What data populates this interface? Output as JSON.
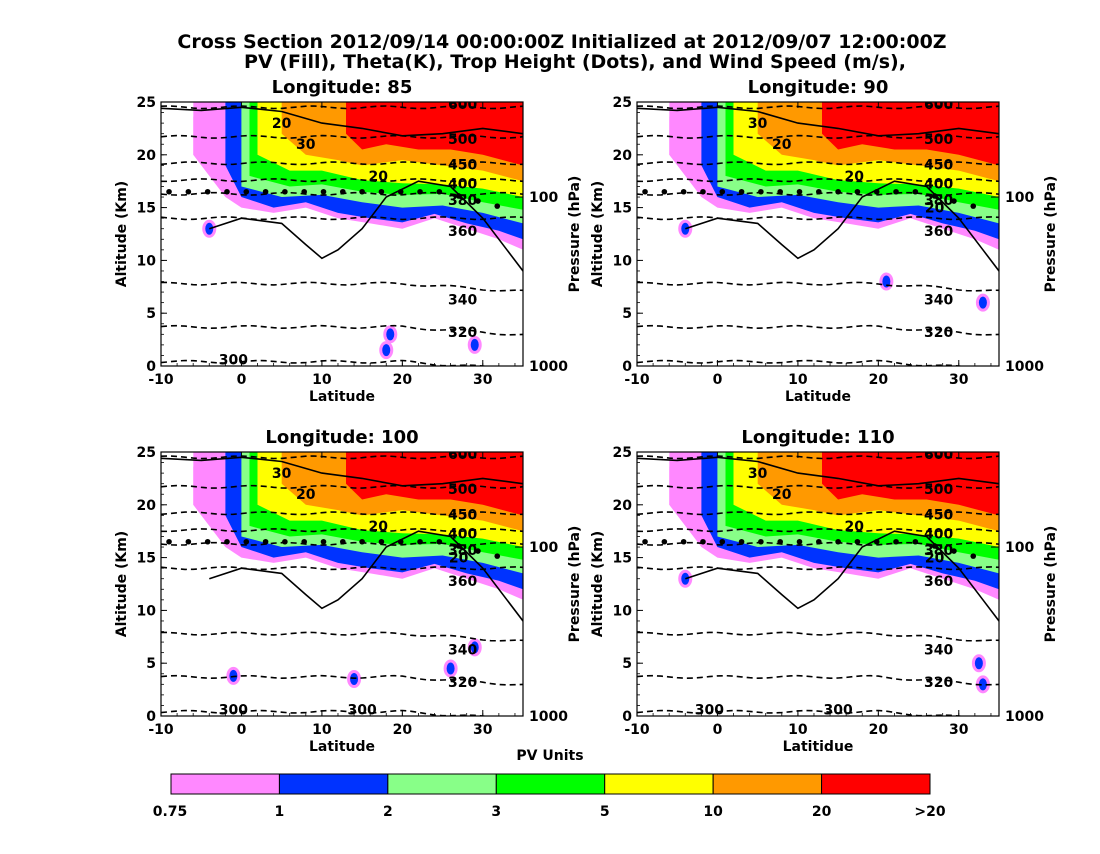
{
  "title_line1": "Cross Section 2012/09/14 00:00:00Z Initialized at 2012/09/07 12:00:00Z",
  "title_line2": "PV (Fill), Theta(K), Trop Height (Dots), and Wind Speed (m/s),",
  "colorbar": {
    "title": "PV Units",
    "colors": [
      "#ff88ff",
      "#0033ff",
      "#88ff88",
      "#00ff00",
      "#ffff00",
      "#ff9900",
      "#ff0000"
    ],
    "labels": [
      "0.75",
      "1",
      "2",
      "3",
      "5",
      "10",
      "20",
      ">20"
    ]
  },
  "chart_data": [
    {
      "type": "contour",
      "title": "Longitude:  85",
      "xlabel": "Latitude",
      "ylabel": "Altitude (Km)",
      "ylabel_right": "Pressure (hPa)",
      "xlim": [
        -10,
        35
      ],
      "ylim": [
        0,
        25
      ],
      "x_ticks": [
        "-10",
        "0",
        "10",
        "20",
        "30"
      ],
      "y_ticks": [
        "0",
        "5",
        "10",
        "15",
        "20",
        "25"
      ],
      "pressure_ticks": [
        "1000",
        "100"
      ],
      "theta_labels": [
        "300",
        "320",
        "340",
        "360",
        "380",
        "400",
        "450",
        "500",
        "600"
      ],
      "wind_labels": [
        "20",
        "30",
        "20"
      ],
      "pv_bands": [
        {
          "x": [
            -10,
            35
          ],
          "y": [
            23,
            25
          ],
          "level": 0.75
        },
        {
          "x": [
            15,
            35
          ],
          "y": [
            18,
            25
          ],
          "level": 20
        },
        {
          "x": [
            0,
            35
          ],
          "y": [
            16,
            18
          ],
          "level": 5
        }
      ],
      "trop_height_km": 16.5
    },
    {
      "type": "contour",
      "title": "Longitude:  90",
      "xlabel": "Latitude",
      "ylabel": "Altitude (Km)",
      "ylabel_right": "Pressure (hPa)",
      "xlim": [
        -10,
        35
      ],
      "ylim": [
        0,
        25
      ],
      "x_ticks": [
        "-10",
        "0",
        "10",
        "20",
        "30"
      ],
      "y_ticks": [
        "0",
        "5",
        "10",
        "15",
        "20",
        "25"
      ],
      "pressure_ticks": [
        "1000",
        "100"
      ],
      "theta_labels": [
        "320",
        "340",
        "360",
        "380",
        "400",
        "450",
        "500",
        "600"
      ],
      "wind_labels": [
        "30",
        "20",
        "20",
        "20"
      ],
      "trop_height_km": 16.5
    },
    {
      "type": "contour",
      "title": "Longitude:  100",
      "xlabel": "Latitude",
      "ylabel": "Altitude (Km)",
      "ylabel_right": "Pressure (hPa)",
      "xlim": [
        -10,
        35
      ],
      "ylim": [
        0,
        25
      ],
      "x_ticks": [
        "-10",
        "0",
        "10",
        "20",
        "30"
      ],
      "y_ticks": [
        "0",
        "5",
        "10",
        "15",
        "20",
        "25"
      ],
      "pressure_ticks": [
        "1000",
        "100"
      ],
      "theta_labels": [
        "300",
        "300",
        "320",
        "340",
        "360",
        "380",
        "400",
        "450",
        "500",
        "600"
      ],
      "wind_labels": [
        "30",
        "20",
        "20",
        "20"
      ],
      "trop_height_km": 16.5
    },
    {
      "type": "contour",
      "title": "Longitude:  110",
      "xlabel": "Latitidue",
      "ylabel": "Altitude (Km)",
      "ylabel_right": "Pressure (hPa)",
      "xlim": [
        -10,
        35
      ],
      "ylim": [
        0,
        25
      ],
      "x_ticks": [
        "-10",
        "0",
        "10",
        "20",
        "30"
      ],
      "y_ticks": [
        "0",
        "5",
        "10",
        "15",
        "20",
        "25"
      ],
      "pressure_ticks": [
        "1000",
        "100"
      ],
      "theta_labels": [
        "300",
        "300",
        "320",
        "340",
        "360",
        "380",
        "400",
        "450",
        "500",
        "600"
      ],
      "wind_labels": [
        "30",
        "20",
        "20",
        "20"
      ],
      "trop_height_km": 16.5
    }
  ]
}
